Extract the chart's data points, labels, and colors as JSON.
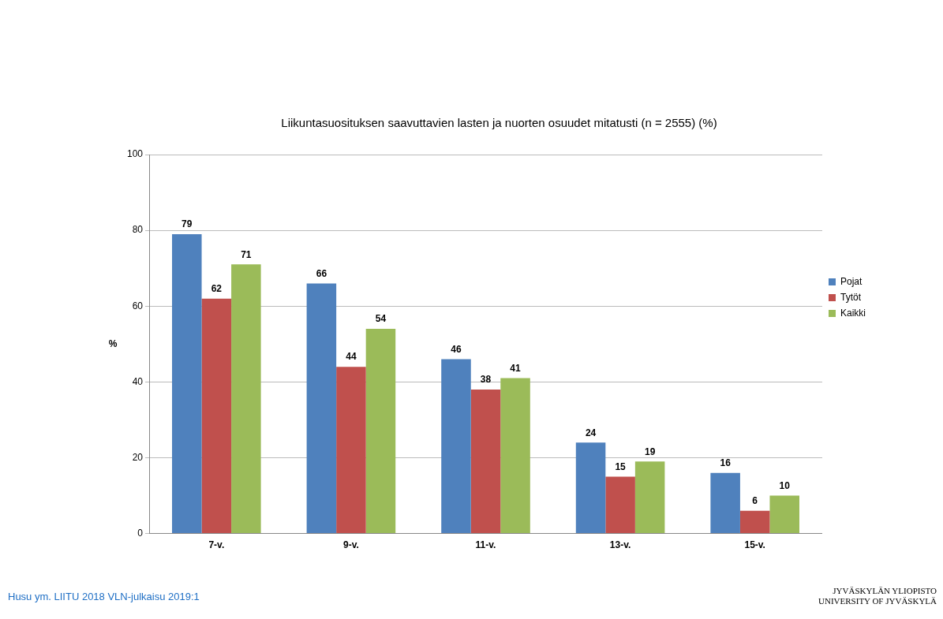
{
  "chart_data": {
    "type": "bar",
    "title": "Liikuntasuosituksen saavuttavien lasten ja nuorten osuudet mitatusti (n = 2555) (%)",
    "ylabel": "%",
    "categories": [
      "7-v.",
      "9-v.",
      "11-v.",
      "13-v.",
      "15-v."
    ],
    "series": [
      {
        "name": "Pojat",
        "color": "#4f81bd",
        "values": [
          79,
          66,
          46,
          24,
          16
        ]
      },
      {
        "name": "Tytöt",
        "color": "#c0504d",
        "values": [
          62,
          44,
          38,
          15,
          6
        ]
      },
      {
        "name": "Kaikki",
        "color": "#9bbb59",
        "values": [
          71,
          54,
          41,
          19,
          10
        ]
      }
    ],
    "ylim": [
      0,
      100
    ],
    "yticks": [
      0,
      20,
      40,
      60,
      80,
      100
    ],
    "grid": "y",
    "legend": "right",
    "data_labels": true,
    "annotations": [
      "Husu ym. LIITU 2018 VLN-julkaisu 2019:1",
      "JYVÄSKYLÄN YLIOPISTO",
      "UNIVERSITY OF JYVÄSKYLÄ"
    ]
  }
}
